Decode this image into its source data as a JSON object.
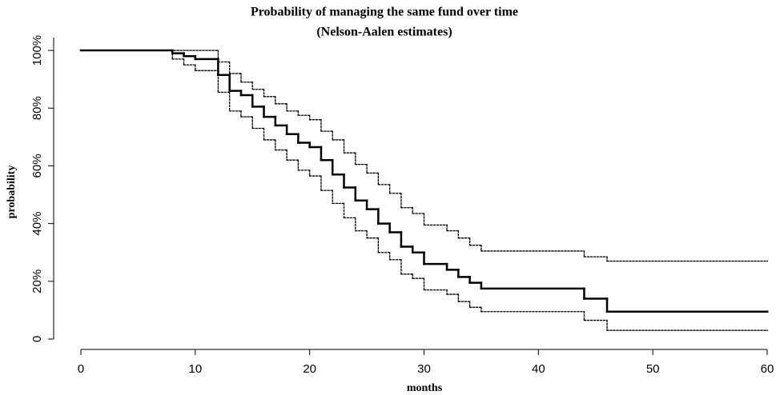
{
  "chart_data": {
    "type": "step",
    "title": "Probability of managing the same fund over time",
    "subtitle": "(Nelson-Aalen estimates)",
    "x_label": "months",
    "y_label": "probability",
    "xlim": [
      0,
      60
    ],
    "xticks": [
      0,
      10,
      20,
      30,
      40,
      50,
      60
    ],
    "ylim": [
      -3.6,
      105
    ],
    "yticks": [
      0,
      {
        "value": 20,
        "label": "20%"
      },
      {
        "value": 40,
        "label": "40%"
      },
      {
        "value": 60,
        "label": "60%"
      },
      {
        "value": 80,
        "label": "80%"
      },
      {
        "value": 100,
        "label": "100%"
      }
    ],
    "grid": false,
    "series": [
      {
        "color": "#000000",
        "linestyle": "solid",
        "linewidth": 2.5,
        "x": [
          0,
          8,
          9,
          10,
          12,
          13,
          14,
          15,
          16,
          17,
          18,
          19,
          20,
          21,
          22,
          23,
          24,
          25,
          26,
          27,
          28,
          29,
          30,
          32,
          33,
          34,
          35,
          44,
          46,
          60
        ],
        "values": [
          100,
          99,
          98,
          97,
          91.5,
          86,
          84.5,
          80.5,
          77,
          74,
          71,
          68,
          66.5,
          62,
          57,
          52.5,
          48,
          45,
          40,
          37,
          32,
          30,
          26,
          24,
          21.5,
          19.5,
          17.5,
          14,
          9.5,
          9.5
        ]
      },
      {
        "color": "#000000",
        "linestyle": "dotted",
        "linewidth": 1.3,
        "x": [
          0,
          12,
          13,
          14,
          15,
          16,
          17,
          18,
          19,
          20,
          21,
          22,
          23,
          24,
          25,
          26,
          27,
          28,
          29,
          30,
          32,
          33,
          34,
          35,
          44,
          46,
          60
        ],
        "values": [
          100,
          96,
          92,
          89,
          86.5,
          84,
          81.5,
          79,
          77.5,
          76,
          72,
          69,
          64.5,
          60.5,
          57.5,
          53.5,
          50.5,
          45.5,
          43.5,
          39.5,
          37.5,
          35,
          32.5,
          30.5,
          28.5,
          27,
          27
        ]
      },
      {
        "color": "#000000",
        "linestyle": "dotted",
        "linewidth": 1.3,
        "x": [
          0,
          8,
          9,
          10,
          12,
          13,
          14,
          15,
          16,
          17,
          18,
          19,
          20,
          21,
          22,
          23,
          24,
          25,
          26,
          27,
          28,
          29,
          30,
          32,
          33,
          34,
          35,
          44,
          46,
          60
        ],
        "values": [
          100,
          97,
          95,
          93,
          85.5,
          79,
          77,
          73,
          69,
          65.5,
          62,
          58.5,
          56.5,
          51.5,
          47,
          42,
          37.5,
          35,
          30,
          27.5,
          22.5,
          21,
          17,
          15.5,
          13,
          11,
          9.5,
          6.5,
          3,
          3
        ]
      }
    ]
  }
}
